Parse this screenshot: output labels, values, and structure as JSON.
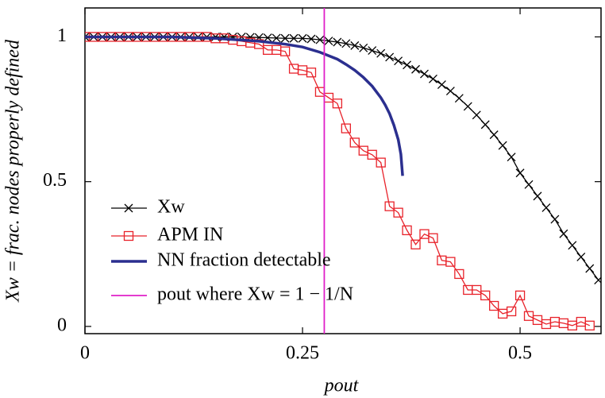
{
  "chart_data": {
    "type": "line",
    "xlabel": "pout",
    "ylabel": "Xw = frac. nodes properly defined",
    "xlim": [
      0,
      0.593
    ],
    "ylim": [
      -0.025,
      1.1
    ],
    "xticks": [
      0,
      0.25,
      0.5
    ],
    "yticks": [
      0,
      0.5,
      1
    ],
    "series": [
      {
        "name": "Xw",
        "color": "#000000",
        "marker": "x",
        "x": [
          0,
          0.01,
          0.02,
          0.03,
          0.04,
          0.05,
          0.06,
          0.07,
          0.08,
          0.09,
          0.1,
          0.11,
          0.12,
          0.13,
          0.14,
          0.15,
          0.16,
          0.17,
          0.18,
          0.19,
          0.2,
          0.21,
          0.22,
          0.23,
          0.24,
          0.25,
          0.26,
          0.27,
          0.28,
          0.29,
          0.3,
          0.31,
          0.32,
          0.33,
          0.34,
          0.35,
          0.36,
          0.37,
          0.38,
          0.39,
          0.4,
          0.41,
          0.42,
          0.43,
          0.44,
          0.45,
          0.46,
          0.47,
          0.48,
          0.49,
          0.5,
          0.51,
          0.52,
          0.53,
          0.54,
          0.55,
          0.56,
          0.57,
          0.58,
          0.59
        ],
        "values": [
          1,
          1,
          1,
          1,
          1,
          1,
          1,
          1,
          1,
          1,
          1,
          1,
          1,
          1,
          1,
          1,
          1,
          1,
          1,
          0.999,
          0.998,
          0.997,
          0.996,
          0.995,
          0.995,
          0.995,
          0.993,
          0.99,
          0.986,
          0.982,
          0.977,
          0.97,
          0.962,
          0.953,
          0.943,
          0.93,
          0.917,
          0.903,
          0.888,
          0.872,
          0.855,
          0.835,
          0.813,
          0.788,
          0.76,
          0.73,
          0.697,
          0.662,
          0.625,
          0.585,
          0.53,
          0.49,
          0.45,
          0.41,
          0.37,
          0.32,
          0.28,
          0.24,
          0.2,
          0.16
        ]
      },
      {
        "name": "APM IN",
        "color": "#e8222a",
        "marker": "square",
        "x": [
          0,
          0.01,
          0.02,
          0.03,
          0.04,
          0.05,
          0.06,
          0.07,
          0.08,
          0.09,
          0.1,
          0.11,
          0.12,
          0.13,
          0.14,
          0.15,
          0.16,
          0.17,
          0.18,
          0.19,
          0.2,
          0.21,
          0.22,
          0.23,
          0.24,
          0.25,
          0.26,
          0.27,
          0.28,
          0.29,
          0.3,
          0.31,
          0.32,
          0.33,
          0.34,
          0.35,
          0.36,
          0.37,
          0.38,
          0.39,
          0.4,
          0.41,
          0.42,
          0.43,
          0.44,
          0.45,
          0.46,
          0.47,
          0.48,
          0.49,
          0.5,
          0.51,
          0.52,
          0.53,
          0.54,
          0.55,
          0.56,
          0.57,
          0.58
        ],
        "values": [
          1,
          1,
          1,
          1,
          1,
          1,
          1,
          1,
          1,
          1,
          1,
          1,
          1,
          1,
          1,
          0.995,
          0.995,
          0.99,
          0.985,
          0.98,
          0.975,
          0.955,
          0.955,
          0.95,
          0.89,
          0.885,
          0.877,
          0.81,
          0.79,
          0.77,
          0.684,
          0.635,
          0.607,
          0.593,
          0.566,
          0.415,
          0.393,
          0.332,
          0.283,
          0.319,
          0.305,
          0.228,
          0.223,
          0.181,
          0.126,
          0.126,
          0.107,
          0.071,
          0.044,
          0.052,
          0.107,
          0.036,
          0.022,
          0.008,
          0.016,
          0.011,
          0.003,
          0.016,
          0.003
        ]
      },
      {
        "name": "NN fraction detectable",
        "color": "#2b2f8f",
        "x": [
          0,
          0.05,
          0.1,
          0.15,
          0.2,
          0.23,
          0.25,
          0.27,
          0.29,
          0.3,
          0.31,
          0.32,
          0.33,
          0.34,
          0.345,
          0.35,
          0.355,
          0.36,
          0.363,
          0.365
        ],
        "values": [
          1,
          1,
          1,
          0.995,
          0.985,
          0.975,
          0.965,
          0.947,
          0.923,
          0.905,
          0.885,
          0.86,
          0.83,
          0.79,
          0.765,
          0.735,
          0.695,
          0.645,
          0.595,
          0.52
        ]
      },
      {
        "name": "pout where Xw = 1 − 1/N",
        "color": "#e020c8",
        "x": 0.275
      }
    ]
  }
}
